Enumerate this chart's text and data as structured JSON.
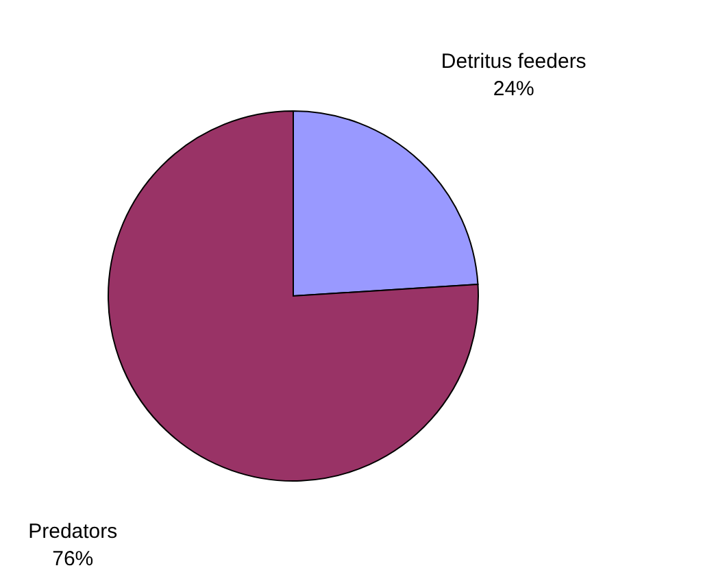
{
  "chart_data": {
    "type": "pie",
    "categories": [
      "Detritus feeders",
      "Predators"
    ],
    "values": [
      24,
      76
    ],
    "colors": [
      "#9999ff",
      "#993366"
    ],
    "value_labels": [
      "24%",
      "76%"
    ]
  }
}
